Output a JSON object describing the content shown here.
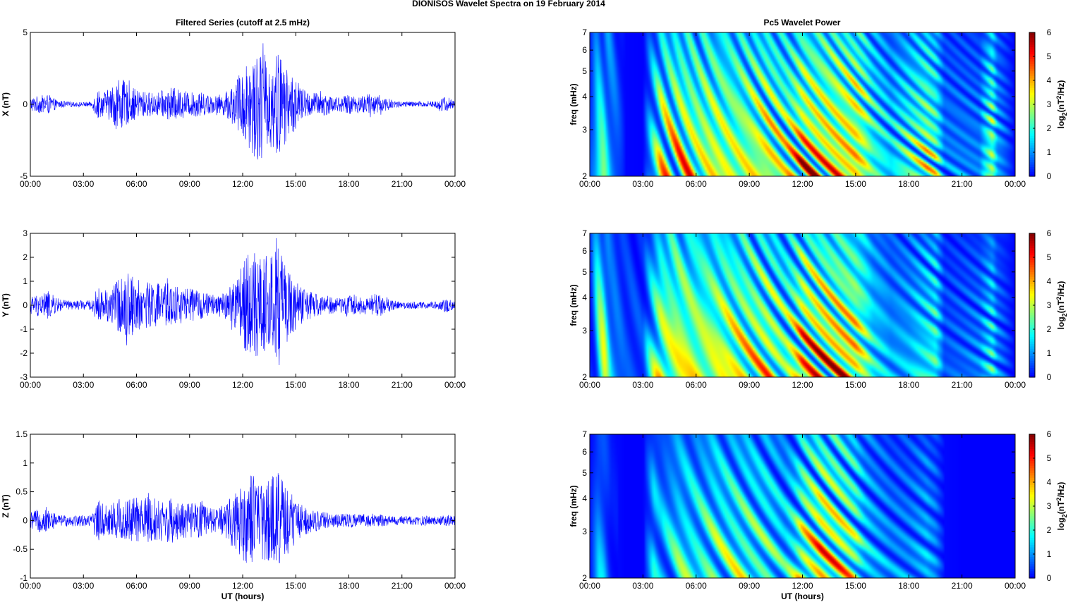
{
  "figure_title": "DIONISOS Wavelet Spectra on 19 February  2014",
  "chart_data": [
    {
      "type": "line",
      "title": "Filtered Series (cutoff at 2.5 mHz)",
      "xlabel": "",
      "ylabel": "X (nT)",
      "xlim": [
        0,
        24
      ],
      "ylim": [
        -5,
        5
      ],
      "xticks": [
        "00:00",
        "03:00",
        "06:00",
        "09:00",
        "12:00",
        "15:00",
        "18:00",
        "21:00",
        "00:00"
      ],
      "yticks": [
        "5",
        "0",
        "-5"
      ],
      "y_tick_values": [
        5,
        0,
        -5
      ],
      "series": [
        {
          "color": "#0000ff",
          "envelope_x": [
            0,
            0.5,
            1,
            1.5,
            2,
            2.5,
            3,
            3.5,
            3.8,
            4,
            4.5,
            5,
            5.5,
            6,
            6.5,
            7,
            7.5,
            8,
            8.5,
            9,
            9.5,
            10,
            10.5,
            11,
            11.5,
            12,
            12.5,
            13,
            13.5,
            14,
            14.5,
            15,
            15.5,
            16,
            16.5,
            17,
            17.5,
            18,
            18.5,
            19,
            19.5,
            20,
            20.5,
            21,
            21.5,
            22,
            22.5,
            23,
            23.5,
            24
          ],
          "envelope_amp": [
            0.5,
            0.6,
            0.7,
            0.3,
            0.2,
            0.15,
            0.15,
            0.2,
            1.2,
            0.8,
            1.1,
            2.0,
            1.4,
            1.0,
            0.9,
            0.8,
            0.9,
            1.2,
            1.0,
            0.8,
            0.9,
            0.7,
            0.6,
            0.8,
            1.5,
            2.5,
            3.5,
            4.0,
            3.0,
            3.8,
            2.5,
            1.8,
            1.0,
            0.8,
            0.9,
            0.6,
            0.5,
            0.7,
            0.6,
            0.7,
            0.8,
            0.5,
            0.3,
            0.2,
            0.2,
            0.2,
            0.2,
            0.3,
            0.6,
            0.2
          ]
        }
      ]
    },
    {
      "type": "line",
      "title": "",
      "xlabel": "",
      "ylabel": "Y (nT)",
      "xlim": [
        0,
        24
      ],
      "ylim": [
        -3,
        3
      ],
      "xticks": [
        "00:00",
        "03:00",
        "06:00",
        "09:00",
        "12:00",
        "15:00",
        "18:00",
        "21:00",
        "00:00"
      ],
      "yticks": [
        "3",
        "2",
        "1",
        "0",
        "-1",
        "-2",
        "-3"
      ],
      "y_tick_values": [
        3,
        2,
        1,
        0,
        -1,
        -2,
        -3
      ],
      "series": [
        {
          "color": "#0000ff",
          "envelope_x": [
            0,
            0.5,
            1,
            1.5,
            2,
            2.5,
            3,
            3.5,
            3.8,
            4,
            4.5,
            5,
            5.5,
            6,
            6.5,
            7,
            7.5,
            8,
            8.5,
            9,
            9.5,
            10,
            10.5,
            11,
            11.5,
            12,
            12.5,
            13,
            13.5,
            14,
            14.5,
            15,
            15.5,
            16,
            16.5,
            17,
            17.5,
            18,
            18.5,
            19,
            19.5,
            20,
            20.5,
            21,
            21.5,
            22,
            22.5,
            23,
            23.5,
            24
          ],
          "envelope_amp": [
            0.4,
            0.5,
            0.6,
            0.3,
            0.2,
            0.2,
            0.2,
            0.2,
            0.8,
            0.6,
            0.8,
            1.1,
            1.4,
            1.1,
            1.0,
            1.0,
            0.9,
            1.0,
            0.8,
            0.7,
            0.6,
            0.5,
            0.4,
            0.6,
            1.0,
            1.8,
            2.4,
            2.2,
            2.0,
            2.6,
            1.6,
            1.0,
            0.7,
            0.5,
            0.4,
            0.4,
            0.3,
            0.4,
            0.4,
            0.3,
            0.5,
            0.4,
            0.2,
            0.15,
            0.15,
            0.15,
            0.15,
            0.15,
            0.3,
            0.15
          ]
        }
      ]
    },
    {
      "type": "line",
      "title": "",
      "xlabel": "UT (hours)",
      "ylabel": "Z (nT)",
      "xlim": [
        0,
        24
      ],
      "ylim": [
        -1,
        1.5
      ],
      "xticks": [
        "00:00",
        "03:00",
        "06:00",
        "09:00",
        "12:00",
        "15:00",
        "18:00",
        "21:00",
        "00:00"
      ],
      "yticks": [
        "1.5",
        "1",
        "0.5",
        "0",
        "-0.5",
        "-1"
      ],
      "y_tick_values": [
        1.5,
        1,
        0.5,
        0,
        -0.5,
        -1
      ],
      "series": [
        {
          "color": "#0000ff",
          "envelope_x": [
            0,
            0.5,
            1,
            1.5,
            2,
            2.5,
            3,
            3.5,
            3.8,
            4,
            4.5,
            5,
            5.5,
            6,
            6.5,
            7,
            7.5,
            8,
            8.5,
            9,
            9.5,
            10,
            10.5,
            11,
            11.5,
            12,
            12.5,
            13,
            13.5,
            14,
            14.5,
            15,
            15.5,
            16,
            16.5,
            17,
            17.5,
            18,
            18.5,
            19,
            19.5,
            20,
            20.5,
            21,
            21.5,
            22,
            22.5,
            23,
            23.5,
            24
          ],
          "envelope_amp": [
            0.15,
            0.2,
            0.2,
            0.1,
            0.1,
            0.1,
            0.1,
            0.1,
            0.4,
            0.3,
            0.3,
            0.4,
            0.4,
            0.4,
            0.4,
            0.4,
            0.35,
            0.4,
            0.3,
            0.3,
            0.3,
            0.25,
            0.2,
            0.3,
            0.5,
            0.7,
            0.8,
            0.7,
            0.7,
            0.9,
            0.6,
            0.4,
            0.25,
            0.2,
            0.15,
            0.15,
            0.12,
            0.12,
            0.12,
            0.12,
            0.12,
            0.1,
            0.08,
            0.08,
            0.08,
            0.08,
            0.08,
            0.08,
            0.1,
            0.08
          ]
        }
      ]
    },
    {
      "type": "heatmap",
      "title": "Pc5 Wavelet Power",
      "xlabel": "",
      "ylabel": "freq (mHz)",
      "colorbar_label": "log2(nT2/Hz)",
      "xlim": [
        0,
        24
      ],
      "ylim": [
        2,
        7
      ],
      "log_y": true,
      "clim": [
        0,
        6
      ],
      "colormap": "jet",
      "xticks": [
        "00:00",
        "03:00",
        "06:00",
        "09:00",
        "12:00",
        "15:00",
        "18:00",
        "21:00",
        "00:00"
      ],
      "yticks": [
        "7",
        "6",
        "5",
        "4",
        "3",
        "2"
      ],
      "y_tick_values": [
        7,
        6,
        5,
        4,
        3,
        2
      ],
      "cbar_ticks": [
        "6",
        "5",
        "4",
        "3",
        "2",
        "1",
        "0"
      ],
      "activity_x": [
        0,
        0.5,
        0.8,
        1.2,
        2,
        3,
        3.6,
        4,
        5,
        6,
        7,
        8,
        9,
        10,
        11,
        11.5,
        12,
        13,
        14,
        15,
        15.5,
        16,
        17,
        18,
        19,
        19.5,
        20,
        21,
        22,
        22.7,
        23,
        24
      ],
      "activity_level": [
        1.0,
        3.0,
        3.5,
        2.0,
        0.2,
        0.1,
        3.0,
        4.5,
        5.2,
        5.0,
        5.2,
        5.0,
        5.0,
        5.2,
        4.5,
        5.0,
        6.0,
        6.0,
        6.0,
        6.0,
        5.0,
        3.5,
        2.5,
        3.5,
        4.5,
        4.0,
        1.5,
        1.5,
        1.5,
        4.5,
        2.0,
        0.1
      ]
    },
    {
      "type": "heatmap",
      "title": "",
      "xlabel": "",
      "ylabel": "freq (mHz)",
      "colorbar_label": "log2(nT2/Hz)",
      "xlim": [
        0,
        24
      ],
      "ylim": [
        2,
        7
      ],
      "log_y": true,
      "clim": [
        0,
        6
      ],
      "colormap": "jet",
      "xticks": [
        "00:00",
        "03:00",
        "06:00",
        "09:00",
        "12:00",
        "15:00",
        "18:00",
        "21:00",
        "00:00"
      ],
      "yticks": [
        "7",
        "6",
        "5",
        "4",
        "3",
        "2"
      ],
      "y_tick_values": [
        7,
        6,
        5,
        4,
        3,
        2
      ],
      "cbar_ticks": [
        "6",
        "5",
        "4",
        "3",
        "2",
        "1",
        "0"
      ],
      "activity_x": [
        0,
        0.5,
        0.8,
        1.2,
        2,
        3,
        3.6,
        4,
        5,
        6,
        7,
        8,
        9,
        10,
        11,
        11.5,
        12,
        13,
        14,
        15,
        15.5,
        16,
        17,
        18,
        19,
        19.5,
        20,
        21,
        22,
        22.7,
        23,
        24
      ],
      "activity_level": [
        1.0,
        3.5,
        4.0,
        2.0,
        1.0,
        0.8,
        3.5,
        5.0,
        5.5,
        5.0,
        5.2,
        5.2,
        5.0,
        4.8,
        4.0,
        4.5,
        5.8,
        6.0,
        6.0,
        5.8,
        4.5,
        3.0,
        2.0,
        2.2,
        3.0,
        3.5,
        1.0,
        1.2,
        1.5,
        3.0,
        1.5,
        0.1
      ]
    },
    {
      "type": "heatmap",
      "title": "",
      "xlabel": "UT (hours)",
      "ylabel": "freq (mHz)",
      "colorbar_label": "log2(nT2/Hz)",
      "xlim": [
        0,
        24
      ],
      "ylim": [
        2,
        7
      ],
      "log_y": true,
      "clim": [
        0,
        6
      ],
      "colormap": "jet",
      "xticks": [
        "00:00",
        "03:00",
        "06:00",
        "09:00",
        "12:00",
        "15:00",
        "18:00",
        "21:00",
        "00:00"
      ],
      "yticks": [
        "7",
        "6",
        "5",
        "4",
        "3",
        "2"
      ],
      "y_tick_values": [
        7,
        6,
        5,
        4,
        3,
        2
      ],
      "cbar_ticks": [
        "6",
        "5",
        "4",
        "3",
        "2",
        "1",
        "0"
      ],
      "activity_x": [
        0,
        0.5,
        0.8,
        1.2,
        2,
        3,
        3.6,
        4,
        5,
        6,
        7,
        8,
        9,
        10,
        11,
        11.5,
        12,
        13,
        14,
        15,
        15.5,
        16,
        17,
        18,
        19,
        19.5,
        20,
        21,
        22,
        22.7,
        23,
        24
      ],
      "activity_level": [
        0.3,
        2.0,
        1.8,
        0.5,
        0.1,
        0.1,
        2.5,
        2.0,
        3.0,
        3.0,
        3.5,
        3.5,
        3.5,
        3.2,
        2.5,
        3.0,
        4.5,
        5.5,
        5.0,
        4.0,
        2.5,
        2.0,
        1.5,
        1.5,
        2.0,
        1.5,
        0.3,
        0.1,
        0.1,
        0.1,
        0.1,
        0.1
      ]
    }
  ]
}
